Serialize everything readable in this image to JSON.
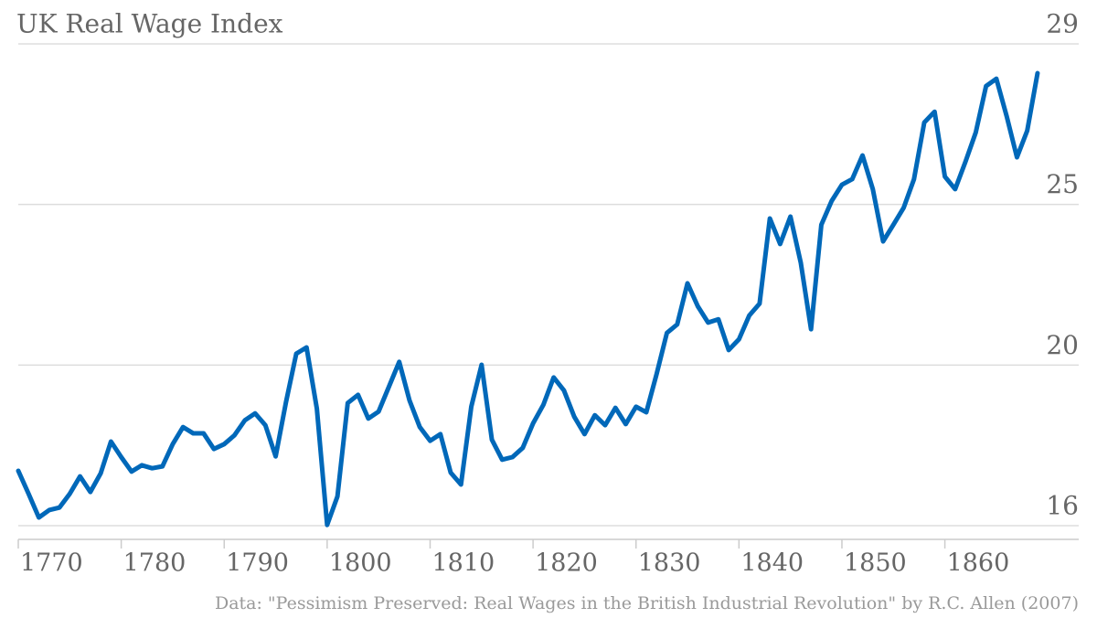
{
  "chart_data": {
    "type": "line",
    "title": "UK Real Wage Index",
    "source": "Data: \"Pessimism Preserved: Real Wages in the British Industrial Revolution\" by R.C. Allen (2007)",
    "x": [
      1770,
      1771,
      1772,
      1773,
      1774,
      1775,
      1776,
      1777,
      1778,
      1779,
      1780,
      1781,
      1782,
      1783,
      1784,
      1785,
      1786,
      1787,
      1788,
      1789,
      1790,
      1791,
      1792,
      1793,
      1794,
      1795,
      1796,
      1797,
      1798,
      1799,
      1800,
      1801,
      1802,
      1803,
      1804,
      1805,
      1806,
      1807,
      1808,
      1809,
      1810,
      1811,
      1812,
      1813,
      1814,
      1815,
      1816,
      1817,
      1818,
      1819,
      1820,
      1821,
      1822,
      1823,
      1824,
      1825,
      1826,
      1827,
      1828,
      1829,
      1830,
      1831,
      1832,
      1833,
      1834,
      1835,
      1836,
      1837,
      1838,
      1839,
      1840,
      1841,
      1842,
      1843,
      1844,
      1845,
      1846,
      1847,
      1848,
      1849,
      1850,
      1851,
      1852,
      1853,
      1854,
      1855,
      1856,
      1857,
      1858,
      1859,
      1860,
      1861,
      1862,
      1863,
      1864,
      1865,
      1866,
      1867,
      1868,
      1869
    ],
    "series": [
      {
        "name": "UK Real Wage Index",
        "color": "#0068b9",
        "values": [
          17.48,
          16.86,
          16.22,
          16.42,
          16.49,
          16.86,
          17.33,
          16.91,
          17.41,
          18.27,
          17.85,
          17.46,
          17.63,
          17.55,
          17.6,
          18.2,
          18.66,
          18.49,
          18.49,
          18.07,
          18.2,
          18.44,
          18.84,
          19.03,
          18.71,
          17.87,
          19.33,
          20.64,
          20.81,
          19.16,
          16.02,
          16.79,
          19.31,
          19.53,
          18.89,
          19.08,
          19.75,
          20.42,
          19.38,
          18.66,
          18.29,
          18.47,
          17.43,
          17.11,
          19.21,
          20.34,
          18.32,
          17.78,
          17.85,
          18.1,
          18.76,
          19.26,
          20.0,
          19.65,
          18.94,
          18.47,
          18.98,
          18.71,
          19.18,
          18.74,
          19.21,
          19.06,
          20.09,
          21.2,
          21.43,
          22.54,
          21.92,
          21.48,
          21.57,
          20.74,
          21.03,
          21.67,
          21.99,
          24.29,
          23.6,
          24.34,
          23.1,
          21.3,
          24.12,
          24.76,
          25.2,
          25.35,
          25.99,
          25.08,
          23.67,
          24.12,
          24.58,
          25.35,
          26.88,
          27.17,
          25.42,
          25.08,
          25.82,
          26.61,
          27.86,
          28.06,
          27.05,
          25.94,
          26.66,
          28.21
        ]
      }
    ],
    "xlim": [
      1770,
      1873
    ],
    "xticks": [
      1770,
      1780,
      1790,
      1800,
      1810,
      1820,
      1830,
      1840,
      1850,
      1860
    ],
    "ylim": [
      16,
      29
    ],
    "yticks": [
      16,
      {
        "value": 20.333,
        "label": "20"
      },
      {
        "value": 24.667,
        "label": "25"
      },
      29
    ],
    "grid": true
  }
}
